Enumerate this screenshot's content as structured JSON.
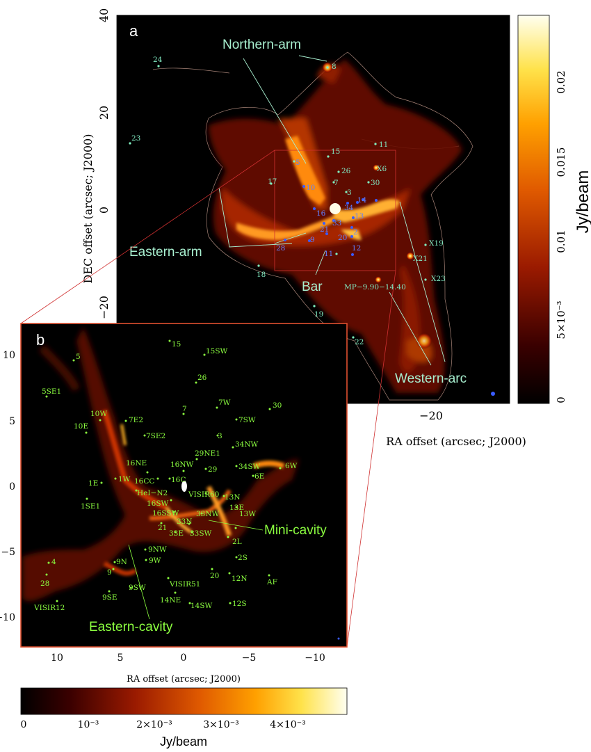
{
  "panel_a": {
    "label": "a",
    "ylabel": "DEC offset (arcsec; J2000)",
    "xlabel": "RA offset (arcsec; J2000)",
    "yticks": [
      "40",
      "20",
      "0",
      "−20"
    ],
    "xticks": [
      "−20"
    ],
    "colorbar": {
      "label": "Jy/beam",
      "ticks": [
        "0.02",
        "0.015",
        "0.01",
        "5×10⁻³",
        "0"
      ]
    },
    "annotations": [
      "Northern-arm",
      "Eastern-arm",
      "Bar",
      "Western-arc"
    ],
    "sources": [
      "24",
      "8",
      "23",
      "15",
      "11",
      "5",
      "26",
      "X6",
      "17",
      "7",
      "30",
      "10",
      "3",
      "14",
      "16",
      "34",
      "13",
      "21",
      "33",
      "20",
      "9",
      "2",
      "28",
      "12",
      "11",
      "X19",
      "X21",
      "18",
      "MP−9.90−14.40",
      "X23",
      "19",
      "22"
    ]
  },
  "panel_b": {
    "label": "b",
    "xlabel": "RA offset (arcsec; J2000)",
    "yticks": [
      "10",
      "5",
      "0",
      "−5",
      "−10"
    ],
    "xticks": [
      "10",
      "5",
      "0",
      "−5",
      "−10"
    ],
    "colorbar": {
      "label": "Jy/beam",
      "ticks": [
        "0",
        "10⁻³",
        "2×10⁻³",
        "3×10⁻³",
        "4×10⁻³"
      ]
    },
    "annotations": [
      "Mini-cavity",
      "Eastern-cavity"
    ],
    "sources": [
      "15",
      "5",
      "15SW",
      "5SE1",
      "26",
      "10W",
      "7W",
      "30",
      "7E2",
      "7",
      "10E",
      "7SE2",
      "7SW",
      "3",
      "34NW",
      "29NE1",
      "16NE",
      "16NW",
      "6W",
      "1E",
      "1W",
      "16CC",
      "16C",
      "29",
      "34SW",
      "6E",
      "1SE1",
      "HeI−N2",
      "VISIR60",
      "16SW",
      "13N",
      "16SSW",
      "33NW",
      "13E",
      "21",
      "33N",
      "13W",
      "33E",
      "33SW",
      "2L",
      "9NW",
      "4",
      "9N",
      "9W",
      "2S",
      "28",
      "9",
      "20",
      "12N",
      "AF",
      "9SW",
      "VISIR51",
      "9SE",
      "14NE",
      "14SW",
      "12S",
      "VISIR12"
    ]
  }
}
